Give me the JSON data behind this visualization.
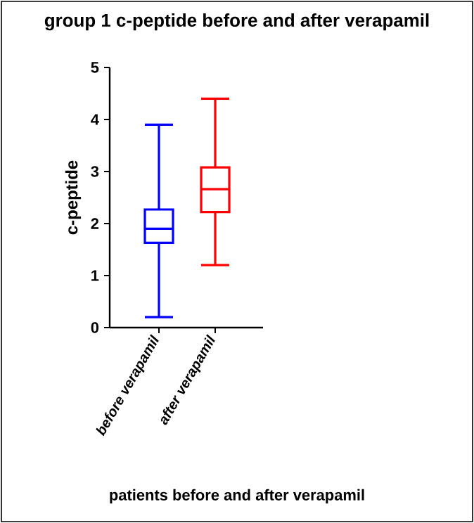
{
  "chart_data": {
    "type": "box",
    "title": "group 1 c-peptide before and after verapamil",
    "xlabel": "patients before and after verapamil",
    "ylabel": "c-peptide",
    "categories": [
      "before verapamil",
      "after verapamil"
    ],
    "colors": [
      "#0000ff",
      "#ff0000"
    ],
    "boxes": [
      {
        "low": 0.2,
        "q1": 1.63,
        "median": 1.9,
        "q3": 2.27,
        "high": 3.9
      },
      {
        "low": 1.2,
        "q1": 2.22,
        "median": 2.66,
        "q3": 3.08,
        "high": 4.4
      }
    ],
    "ylim": [
      0,
      5
    ],
    "yticks": [
      0,
      1,
      2,
      3,
      4,
      5
    ],
    "grid": false
  }
}
